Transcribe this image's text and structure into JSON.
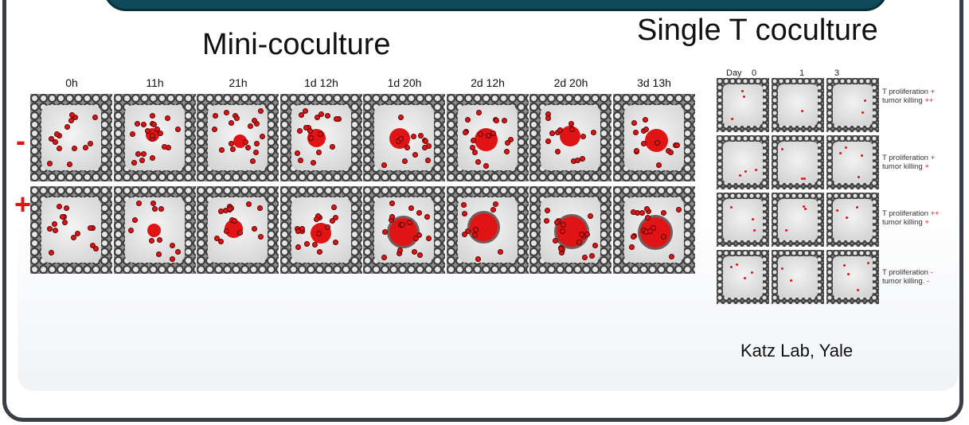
{
  "titles": {
    "mini": "Mini-coculture",
    "single": "Single T coculture"
  },
  "mini_coculture": {
    "time_points": [
      "0h",
      "11h",
      "21h",
      "1d 12h",
      "1d 20h",
      "2d 12h",
      "2d 20h",
      "3d 13h"
    ],
    "rows": [
      {
        "sign": "-",
        "cluster_growth": [
          0.0,
          0.3,
          0.3,
          0.5,
          0.6,
          0.7,
          0.6,
          0.7
        ]
      },
      {
        "sign": "+",
        "cluster_growth": [
          0.0,
          0.3,
          0.5,
          0.6,
          0.9,
          0.9,
          1.0,
          1.0
        ]
      }
    ]
  },
  "single_t_coculture": {
    "day_prefix": "Day",
    "days": [
      "0",
      "1",
      "3"
    ],
    "outcomes": [
      {
        "proliferation_label": "T proliferation",
        "proliferation_mark": "+",
        "killing_label": "tumor killing",
        "killing_mark": "++"
      },
      {
        "proliferation_label": "T proliferation",
        "proliferation_mark": "+",
        "killing_label": "tumor killing",
        "killing_mark": "+"
      },
      {
        "proliferation_label": "T proliferation",
        "proliferation_mark": "++",
        "killing_label": "tumor killing",
        "killing_mark": "+"
      },
      {
        "proliferation_label": "T proliferation",
        "proliferation_mark": "-",
        "killing_label": "tumor killing.",
        "killing_mark": "-"
      }
    ]
  },
  "credit": "Katz Lab, Yale",
  "colors": {
    "accent_red": "#e01414",
    "header_bar": "#0e4a59",
    "frame": "#3a3f45"
  }
}
